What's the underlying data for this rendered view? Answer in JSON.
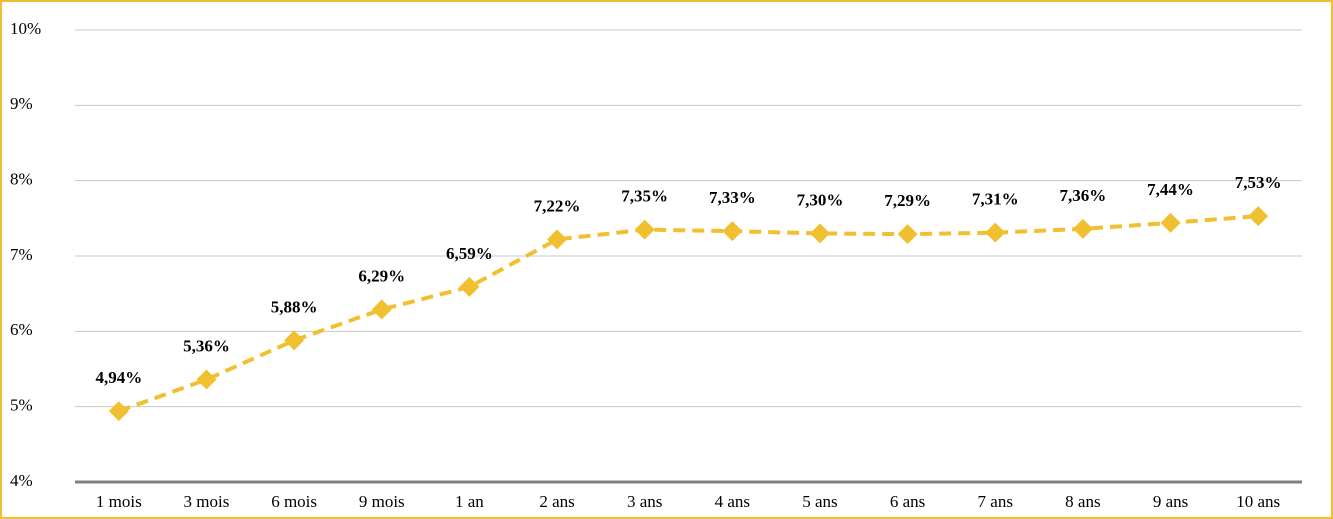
{
  "chart_data": {
    "type": "line",
    "categories": [
      "1 mois",
      "3 mois",
      "6 mois",
      "9 mois",
      "1 an",
      "2 ans",
      "3 ans",
      "4 ans",
      "5 ans",
      "6 ans",
      "7 ans",
      "8 ans",
      "9 ans",
      "10 ans"
    ],
    "series": [
      {
        "color": "#f0c030",
        "values": [
          4.94,
          5.36,
          5.88,
          6.29,
          6.59,
          7.22,
          7.35,
          7.33,
          7.3,
          7.29,
          7.31,
          7.36,
          7.44,
          7.53
        ],
        "value_labels": [
          "4,94%",
          "5,36%",
          "5,88%",
          "6,29%",
          "6,59%",
          "7,22%",
          "7,35%",
          "7,33%",
          "7,30%",
          "7,29%",
          "7,31%",
          "7,36%",
          "7,44%",
          "7,53%"
        ]
      }
    ],
    "ylim": [
      4,
      10
    ],
    "yticks": [
      {
        "value": 4,
        "label": "4%"
      },
      {
        "value": 5,
        "label": "5%"
      },
      {
        "value": 6,
        "label": "6%"
      },
      {
        "value": 7,
        "label": "7%"
      },
      {
        "value": 8,
        "label": "8%"
      },
      {
        "value": 9,
        "label": "9%"
      },
      {
        "value": 10,
        "label": "10%"
      }
    ],
    "grid": true
  }
}
